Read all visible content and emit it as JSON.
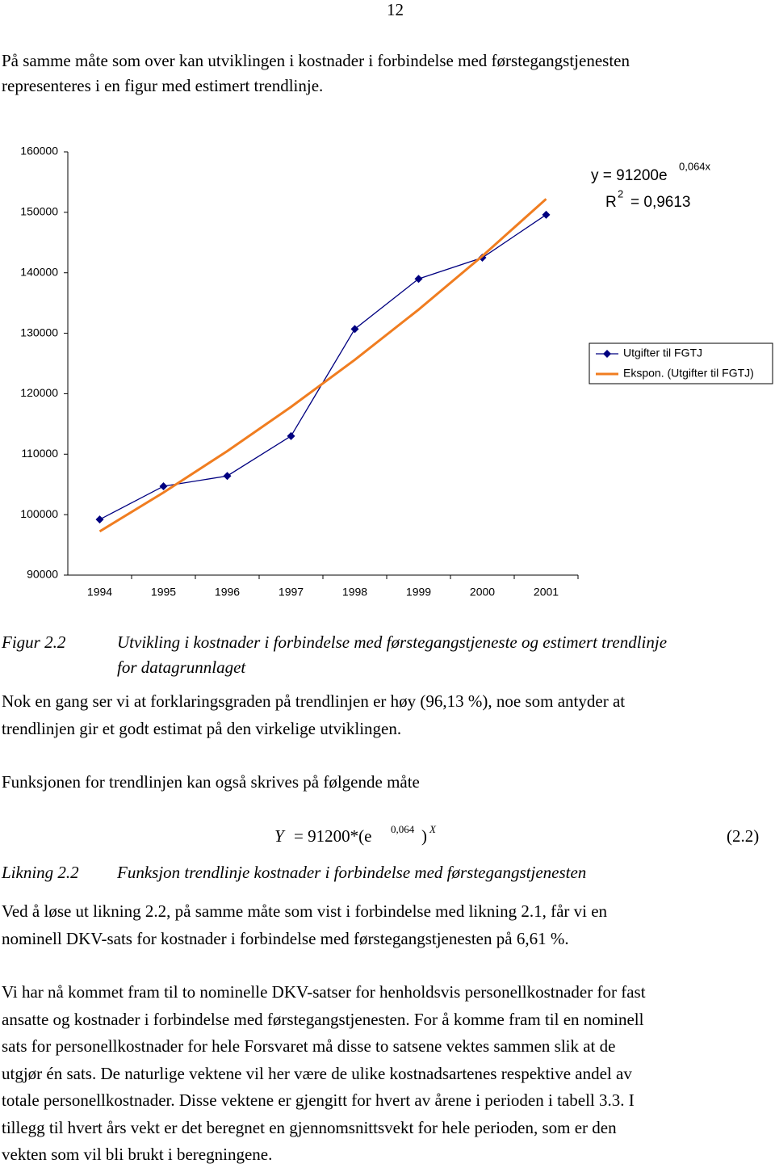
{
  "page_number": "12",
  "intro": [
    "På samme måte som over kan utviklingen i kostnader i forbindelse med førstegangstjenesten",
    "representeres i en figur med estimert trendlinje."
  ],
  "chart_data": {
    "type": "line",
    "categories": [
      "1994",
      "1995",
      "1996",
      "1997",
      "1998",
      "1999",
      "2000",
      "2001"
    ],
    "series": [
      {
        "name": "Utgifter til FGTJ",
        "color": "#000080",
        "marker": "diamond",
        "values": [
          99200,
          104700,
          106400,
          113000,
          130700,
          139000,
          142500,
          149600
        ]
      },
      {
        "name": "Ekspon. (Utgifter til FGTJ)",
        "color": "#f07d20",
        "values": [
          97230,
          103660,
          110510,
          117820,
          125610,
          133910,
          142770,
          152210
        ]
      }
    ],
    "ylim": [
      90000,
      160000
    ],
    "yticks": [
      90000,
      100000,
      110000,
      120000,
      130000,
      140000,
      150000,
      160000
    ],
    "grid": false,
    "legend": "right",
    "trendline_equation": {
      "text": "y = 91200e",
      "superscript": "0,064x"
    },
    "r_squared": {
      "text": "R",
      "superscript": "2",
      "rest": "= 0,9613"
    }
  },
  "figure_caption": {
    "label": "Figur 2.2",
    "lines": [
      "Utvikling i kostnader i forbindelse med førstegangstjeneste og estimert trendlinje",
      "for datagrunnlaget"
    ]
  },
  "paragraphs": [
    [
      "Nok en gang ser vi at forklaringsgraden på trendlinjen er høy (96,13 %), noe som antyder at",
      "trendlinjen gir et godt estimat på den virkelige utviklingen."
    ],
    [
      "Funksjonen for trendlinjen kan også skrives på følgende måte"
    ]
  ],
  "equation": {
    "lhs": "Y",
    "rhs": "= 91200*(e",
    "exponent": "0,064",
    "close": ")",
    "power": "X",
    "number": "(2.2)"
  },
  "equation_caption": {
    "label": "Likning 2.2",
    "text": "Funksjon trendlinje kostnader i forbindelse med førstegangstjenesten"
  },
  "paragraphs_after": [
    [
      "Ved å løse ut likning 2.2, på samme måte som vist i forbindelse med likning 2.1, får vi en",
      "nominell DKV-sats for kostnader i forbindelse med førstegangstjenesten på 6,61 %."
    ],
    [
      "Vi har nå kommet fram til to nominelle DKV-satser for henholdsvis personellkostnader for fast",
      "ansatte og kostnader i forbindelse med førstegangstjenesten. For å komme fram til en nominell",
      "sats for personellkostnader for hele Forsvaret må disse to satsene vektes sammen slik at de",
      "utgjør én sats. De naturlige vektene vil her være de ulike kostnadsartenes respektive andel av",
      "totale personellkostnader. Disse vektene er gjengitt for hvert av årene i perioden i tabell 3.3. I",
      "tillegg til hvert års vekt er det beregnet en gjennomsnittsvekt for hele perioden, som er den",
      "vekten som vil bli brukt i beregningene."
    ]
  ]
}
